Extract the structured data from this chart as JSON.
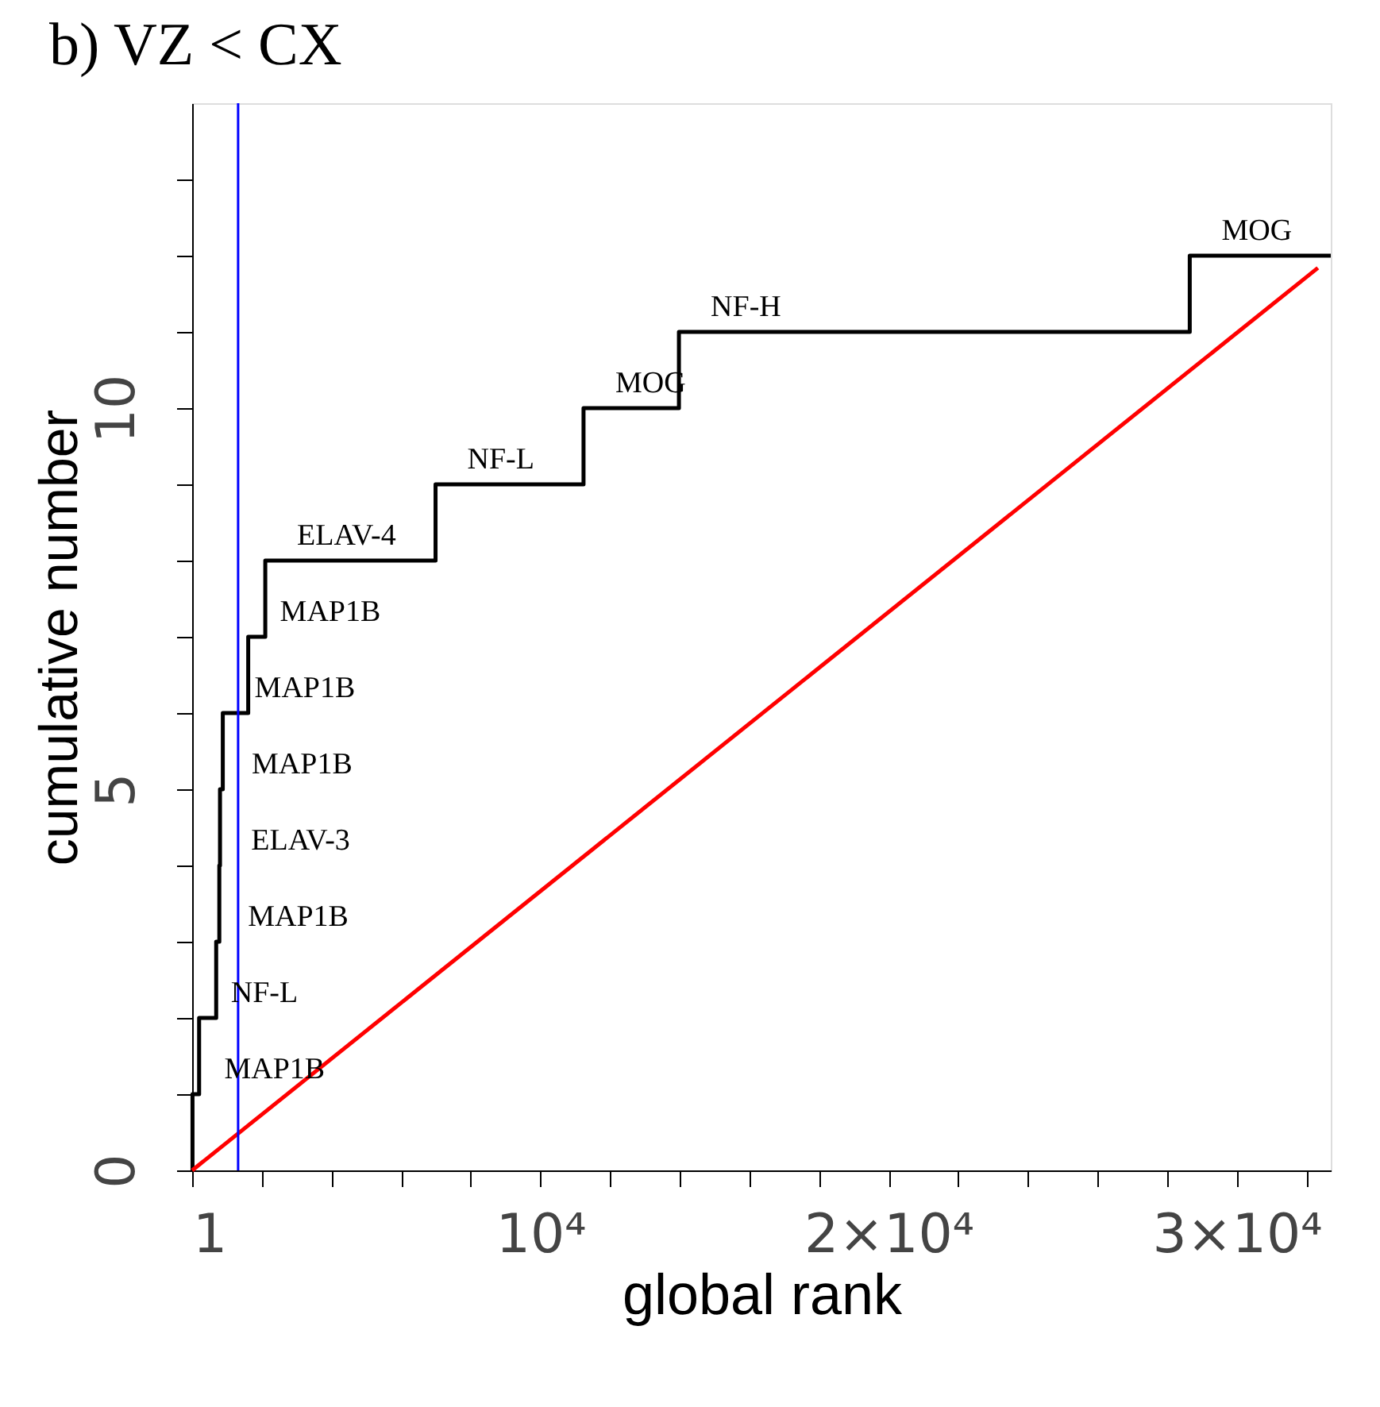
{
  "chart_data": {
    "type": "step",
    "title": "b)  VZ < CX",
    "xlabel": "global rank",
    "ylabel": "cumulative number",
    "xlim": [
      0,
      32700
    ],
    "ylim": [
      0,
      14
    ],
    "xticks": [
      {
        "value": 1,
        "label": "1"
      },
      {
        "value": 2000,
        "label": null
      },
      {
        "value": 4000,
        "label": null
      },
      {
        "value": 6000,
        "label": null
      },
      {
        "value": 8000,
        "label": null
      },
      {
        "value": 10000,
        "label": "10⁴"
      },
      {
        "value": 12000,
        "label": null
      },
      {
        "value": 14000,
        "label": null
      },
      {
        "value": 16000,
        "label": null
      },
      {
        "value": 18000,
        "label": null
      },
      {
        "value": 20000,
        "label": "2×10⁴"
      },
      {
        "value": 22000,
        "label": null
      },
      {
        "value": 24000,
        "label": null
      },
      {
        "value": 26000,
        "label": null
      },
      {
        "value": 28000,
        "label": null
      },
      {
        "value": 30000,
        "label": "3×10⁴"
      },
      {
        "value": 32000,
        "label": null
      }
    ],
    "yticks": [
      0,
      {
        "value": 1,
        "label": null
      },
      {
        "value": 2,
        "label": null
      },
      {
        "value": 3,
        "label": null
      },
      {
        "value": 4,
        "label": null
      },
      5,
      {
        "value": 6,
        "label": null
      },
      {
        "value": 7,
        "label": null
      },
      {
        "value": 8,
        "label": null
      },
      {
        "value": 9,
        "label": null
      },
      10,
      {
        "value": 11,
        "label": null
      },
      {
        "value": 12,
        "label": null
      },
      {
        "value": 13,
        "label": null
      }
    ],
    "grid": false,
    "series": [
      {
        "color": "#000000",
        "line_style": "solid",
        "x": [
          0,
          10,
          200,
          690,
          780,
          800,
          880,
          1610,
          2100,
          6990,
          11240,
          13980,
          28650,
          32700
        ],
        "values": [
          0,
          1,
          2,
          3,
          4,
          5,
          6,
          7,
          8,
          9,
          10,
          11,
          12,
          12
        ]
      },
      {
        "type": "line",
        "color": "#ff0000",
        "line_style": "solid",
        "x": [
          0,
          32330
        ],
        "values": [
          0,
          11.84
        ]
      }
    ],
    "ref_lines": [
      {
        "axis": "x",
        "value": 1320,
        "color": "#0000ff"
      }
    ],
    "annotations": [
      {
        "text": "MAP1B",
        "x": 10,
        "y": 1
      },
      {
        "text": "NF-L",
        "x": 200,
        "y": 2
      },
      {
        "text": "MAP1B",
        "x": 690,
        "y": 3
      },
      {
        "text": "ELAV-3",
        "x": 780,
        "y": 4
      },
      {
        "text": "MAP1B",
        "x": 800,
        "y": 5
      },
      {
        "text": "MAP1B",
        "x": 880,
        "y": 6
      },
      {
        "text": "MAP1B",
        "x": 1610,
        "y": 7
      },
      {
        "text": "ELAV-4",
        "x": 2100,
        "y": 8
      },
      {
        "text": "NF-L",
        "x": 6990,
        "y": 9
      },
      {
        "text": "MOG",
        "x": 11240,
        "y": 10
      },
      {
        "text": "NF-H",
        "x": 13980,
        "y": 11
      },
      {
        "text": "MOG",
        "x": 28650,
        "y": 12
      }
    ]
  }
}
